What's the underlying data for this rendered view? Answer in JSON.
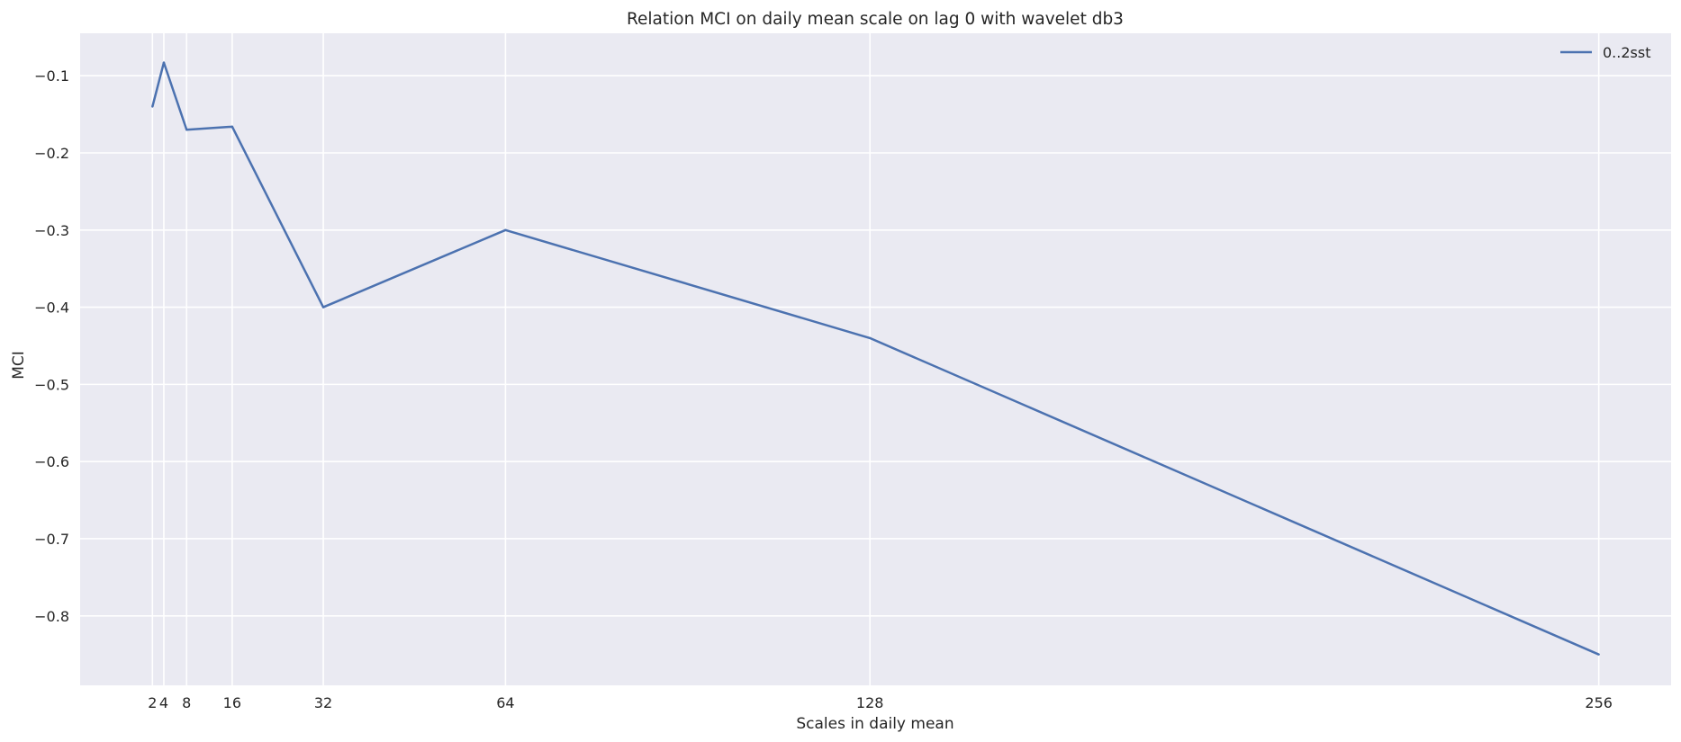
{
  "chart_data": {
    "type": "line",
    "title": "Relation MCI on daily mean scale on lag 0 with wavelet db3",
    "xlabel": "Scales in daily mean",
    "ylabel": "MCI",
    "x": [
      2,
      4,
      8,
      16,
      32,
      64,
      128,
      256
    ],
    "series": [
      {
        "name": "0..2sst",
        "values": [
          -0.14,
          -0.083,
          -0.17,
          -0.166,
          -0.4,
          -0.3,
          -0.44,
          -0.85
        ],
        "color": "#4c72b0"
      }
    ],
    "xticks": [
      2,
      4,
      8,
      16,
      32,
      64,
      128,
      256
    ],
    "xtick_labels": [
      "2",
      "4",
      "8",
      "16",
      "32",
      "64",
      "128",
      "256"
    ],
    "yticks": [
      -0.8,
      -0.7,
      -0.6,
      -0.5,
      -0.4,
      -0.3,
      -0.2,
      -0.1
    ],
    "ytick_labels": [
      "−0.8",
      "−0.7",
      "−0.6",
      "−0.5",
      "−0.4",
      "−0.3",
      "−0.2",
      "−0.1"
    ],
    "xlim": [
      -10.7,
      268.7
    ],
    "ylim": [
      -0.89,
      -0.045
    ],
    "grid": true,
    "legend_position": "top-right",
    "background_color": "#eaeaf2",
    "grid_color": "#ffffff"
  }
}
